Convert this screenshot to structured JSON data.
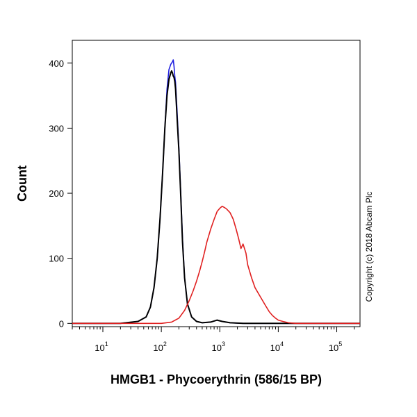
{
  "chart_data": {
    "type": "line",
    "xlabel": "HMGB1 - Phycoerythrin (586/15 BP)",
    "ylabel": "Count",
    "x_scale": "log",
    "xlim": [
      3,
      250000
    ],
    "ylim": [
      -5,
      435
    ],
    "x_ticks": [
      {
        "base": "10",
        "exp": "1",
        "value": 10
      },
      {
        "base": "10",
        "exp": "2",
        "value": 100
      },
      {
        "base": "10",
        "exp": "3",
        "value": 1000
      },
      {
        "base": "10",
        "exp": "4",
        "value": 10000
      },
      {
        "base": "10",
        "exp": "5",
        "value": 100000
      }
    ],
    "y_ticks": [
      "0",
      "100",
      "200",
      "300",
      "400"
    ],
    "grid": false,
    "legend": "none",
    "series": [
      {
        "color": "#2020e0",
        "x": [
          3,
          20,
          40,
          55,
          65,
          75,
          85,
          95,
          105,
          115,
          125,
          135,
          145,
          155,
          160,
          165,
          170,
          175,
          185,
          200,
          215,
          230,
          250,
          280,
          330,
          400,
          500,
          700,
          900,
          1100,
          1500,
          2500,
          5000,
          20000,
          250000
        ],
        "y": [
          0,
          0,
          3,
          10,
          25,
          55,
          100,
          160,
          230,
          300,
          360,
          390,
          398,
          402,
          405,
          395,
          380,
          370,
          330,
          270,
          200,
          130,
          70,
          30,
          10,
          3,
          1,
          2,
          5,
          3,
          1,
          0,
          0,
          0,
          0
        ]
      },
      {
        "color": "#000000",
        "x": [
          3,
          20,
          40,
          55,
          65,
          75,
          85,
          95,
          105,
          115,
          125,
          135,
          145,
          150,
          155,
          160,
          165,
          170,
          175,
          185,
          200,
          215,
          230,
          250,
          280,
          330,
          400,
          500,
          700,
          900,
          1100,
          1500,
          2500,
          5000,
          20000,
          250000
        ],
        "y": [
          0,
          0,
          3,
          10,
          25,
          55,
          100,
          160,
          230,
          300,
          350,
          375,
          385,
          388,
          385,
          380,
          378,
          372,
          360,
          320,
          265,
          195,
          125,
          70,
          30,
          10,
          3,
          1,
          2,
          5,
          3,
          1,
          0,
          0,
          0,
          0
        ]
      },
      {
        "color": "#e02020",
        "x": [
          3,
          100,
          150,
          200,
          250,
          300,
          350,
          400,
          450,
          500,
          550,
          600,
          700,
          800,
          900,
          1000,
          1100,
          1200,
          1300,
          1400,
          1500,
          1700,
          1900,
          2100,
          2300,
          2500,
          2800,
          3000,
          3500,
          4000,
          5000,
          6000,
          7000,
          8000,
          9000,
          10000,
          12000,
          15000,
          20000,
          250000
        ],
        "y": [
          0,
          0,
          2,
          8,
          20,
          35,
          50,
          65,
          80,
          95,
          110,
          125,
          145,
          160,
          172,
          177,
          180,
          178,
          176,
          173,
          170,
          160,
          145,
          130,
          115,
          122,
          108,
          90,
          70,
          55,
          40,
          28,
          18,
          12,
          8,
          5,
          3,
          1,
          0,
          0
        ]
      }
    ]
  },
  "copyright": "Copyright (c) 2018 Abcam Plc"
}
